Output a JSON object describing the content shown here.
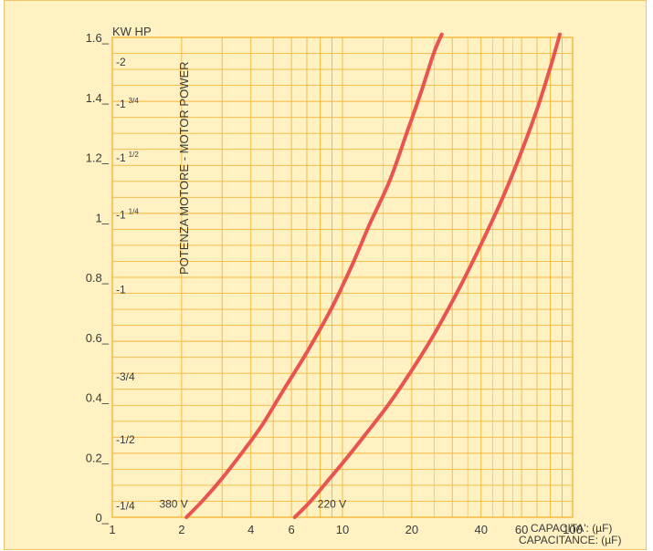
{
  "chart_data": {
    "type": "line",
    "x_scale": "log",
    "xlim": [
      1,
      100
    ],
    "ylim": [
      0,
      1.6
    ],
    "grid": true,
    "colors": {
      "background": "#fff1c2",
      "grid": "#f4b63a",
      "curve": "#e85450",
      "text": "#3a3a3a"
    },
    "units_label": "KW HP",
    "x_ticks": [
      {
        "value": 1,
        "label": "1"
      },
      {
        "value": 2,
        "label": "2"
      },
      {
        "value": 4,
        "label": "4"
      },
      {
        "value": 6,
        "label": "6"
      },
      {
        "value": 10,
        "label": "10"
      },
      {
        "value": 20,
        "label": "20"
      },
      {
        "value": 40,
        "label": "40"
      },
      {
        "value": 60,
        "label": "60"
      },
      {
        "value": 100,
        "label": "100"
      }
    ],
    "y_ticks_kw": [
      {
        "value": 0,
        "label": "0_"
      },
      {
        "value": 0.2,
        "label": "0.2_"
      },
      {
        "value": 0.4,
        "label": "0.4_"
      },
      {
        "value": 0.6,
        "label": "0.6_"
      },
      {
        "value": 0.8,
        "label": "0.8_"
      },
      {
        "value": 1.0,
        "label": "1_"
      },
      {
        "value": 1.2,
        "label": "1.2_"
      },
      {
        "value": 1.4,
        "label": "1.4_"
      },
      {
        "value": 1.6,
        "label": "1.6_"
      }
    ],
    "y_ticks_hp": [
      {
        "value": 0.02,
        "label": "-1/4"
      },
      {
        "value": 0.24,
        "label": "-1/2"
      },
      {
        "value": 0.45,
        "label": "-3/4"
      },
      {
        "value": 0.74,
        "label": "-1"
      },
      {
        "value": 0.99,
        "label": "-1",
        "sup": "1/4"
      },
      {
        "value": 1.18,
        "label": "-1",
        "sup": "1/2"
      },
      {
        "value": 1.36,
        "label": "-1",
        "sup": "3/4"
      },
      {
        "value": 1.5,
        "label": "-2"
      }
    ],
    "ylabel": "POTENZA MOTORE - MOTOR POWER",
    "xlabel_line1": "CAPACITA': (µF)",
    "xlabel_line2": "CAPACITANCE: (µF)",
    "series": [
      {
        "name": "380 V",
        "x": [
          2.1,
          2.5,
          3,
          3.7,
          4.5,
          5.5,
          7,
          9,
          11,
          13,
          16,
          19,
          22,
          25,
          27
        ],
        "y": [
          0,
          0.06,
          0.13,
          0.22,
          0.31,
          0.42,
          0.55,
          0.7,
          0.84,
          0.97,
          1.12,
          1.28,
          1.42,
          1.55,
          1.61
        ]
      },
      {
        "name": "220 V",
        "x": [
          6.2,
          7.2,
          8.6,
          10.5,
          13,
          16,
          20,
          25,
          32,
          40,
          50,
          60,
          70,
          80,
          88
        ],
        "y": [
          0,
          0.05,
          0.12,
          0.2,
          0.29,
          0.38,
          0.49,
          0.61,
          0.76,
          0.91,
          1.07,
          1.22,
          1.36,
          1.5,
          1.61
        ]
      }
    ]
  }
}
